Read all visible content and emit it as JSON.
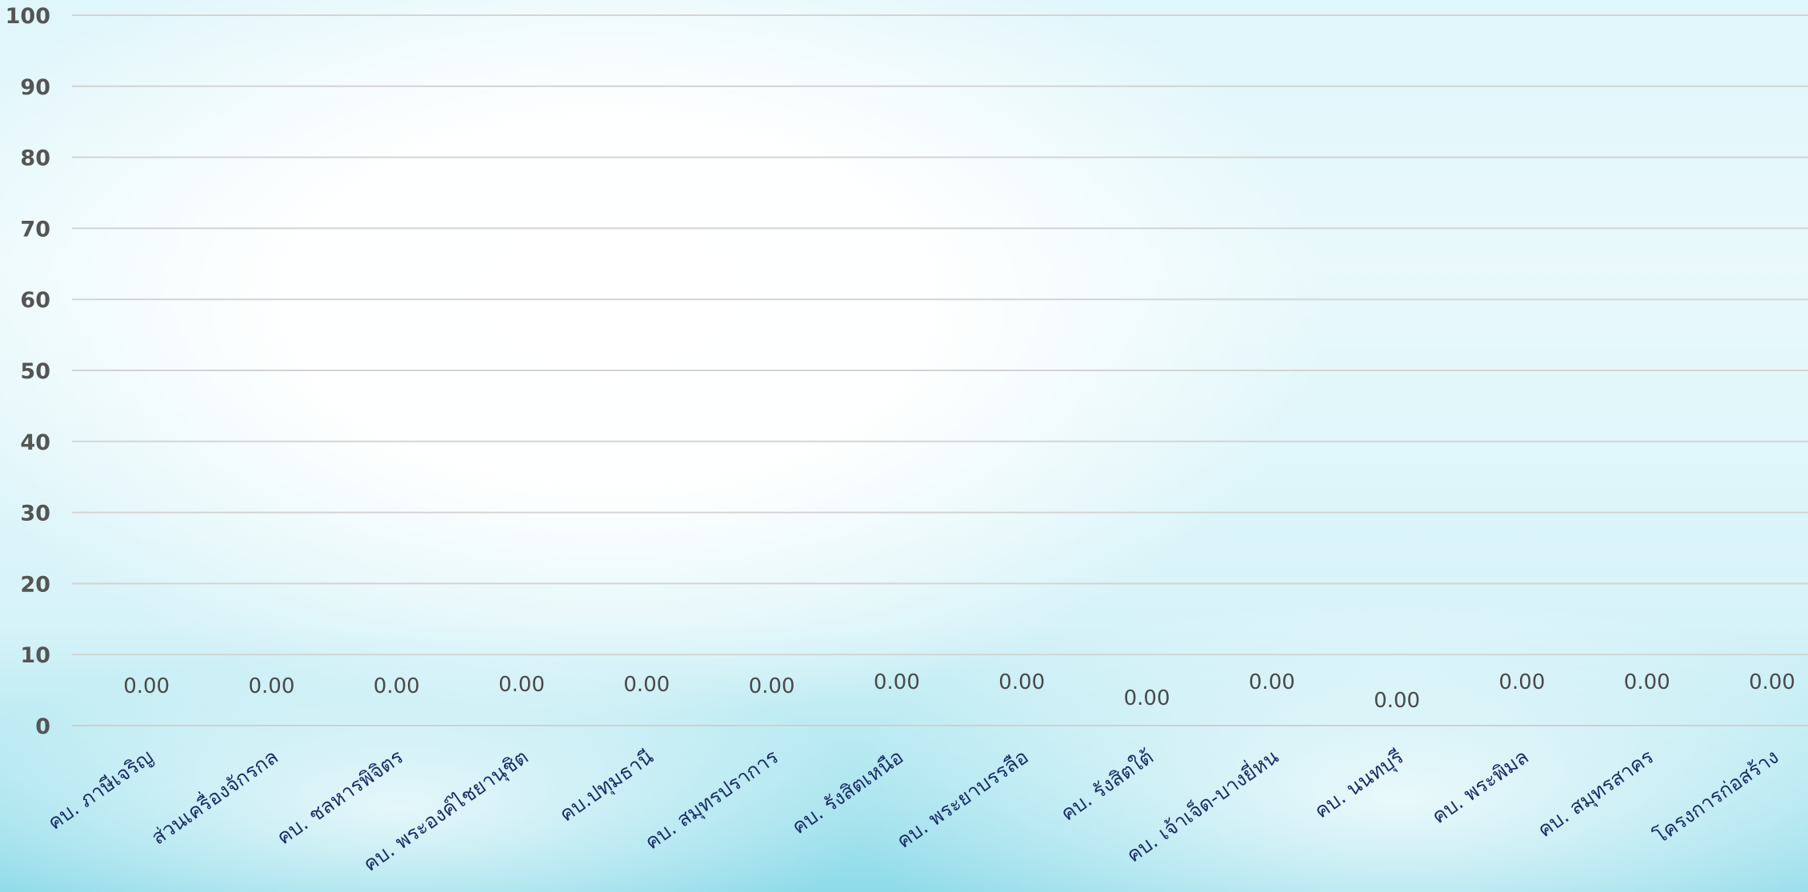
{
  "chart_data": {
    "type": "bar",
    "title": "",
    "xlabel": "",
    "ylabel": "",
    "ylim": [
      0,
      100
    ],
    "yticks": [
      "0",
      "10",
      "20",
      "30",
      "40",
      "50",
      "60",
      "70",
      "80",
      "90",
      "100"
    ],
    "grid": true,
    "categories": [
      "คบ. ภาษีเจริญ",
      "ส่วนเครื่องจักรกล",
      "คบ. ชลหารพิจิตร",
      "คบ. พระองค์ไชยานุชิต",
      "คบ.ปทุมธานี",
      "คบ. สมุทรปราการ",
      "คบ. รังสิตเหนือ",
      "คบ. พระยาบรรลือ",
      "คบ. รังสิตใต้",
      "คบ. เจ้าเจ็ด-บางยี่หน",
      "คบ. นนทบุรี",
      "คบ. พระพิมล",
      "คบ. สมุทรสาคร",
      "โครงการก่อสร้าง"
    ],
    "values": [
      0,
      0,
      0,
      0,
      0,
      0,
      0,
      0,
      0,
      0,
      0,
      0,
      0,
      0
    ],
    "data_labels": [
      "0.00",
      "0.00",
      "0.00",
      "0.00",
      "0.00",
      "0.00",
      "0.00",
      "0.00",
      "0.00",
      "0.00",
      "0.00",
      "0.00",
      "0.00",
      "0.00"
    ]
  },
  "colors": {
    "grid": "#d4d4d4",
    "ytick": "#555555",
    "data_label": "#4a4a4a",
    "xtick": "#1b2f66",
    "bar": "#2f6fb5"
  }
}
